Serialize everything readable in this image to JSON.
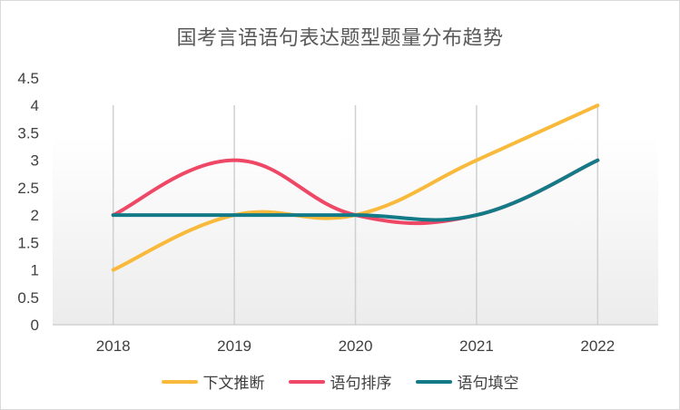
{
  "chart_data": {
    "type": "line",
    "title": "国考言语语句表达题型题量分布趋势",
    "categories": [
      "2018",
      "2019",
      "2020",
      "2021",
      "2022"
    ],
    "series": [
      {
        "name": "下文推断",
        "values": [
          1,
          2,
          2,
          3,
          4
        ],
        "color": "#F9B93A"
      },
      {
        "name": "语句排序",
        "values": [
          2,
          3,
          2,
          2,
          3
        ],
        "color": "#EE4866"
      },
      {
        "name": "语句填空",
        "values": [
          2,
          2,
          2,
          2,
          3
        ],
        "color": "#137A88"
      }
    ],
    "yticks": [
      "0",
      "0.5",
      "1",
      "1.5",
      "2",
      "2.5",
      "3",
      "3.5",
      "4",
      "4.5"
    ],
    "ylim": [
      0,
      4.5
    ],
    "smooth": true,
    "grid": "vertical",
    "legend_position": "bottom"
  }
}
